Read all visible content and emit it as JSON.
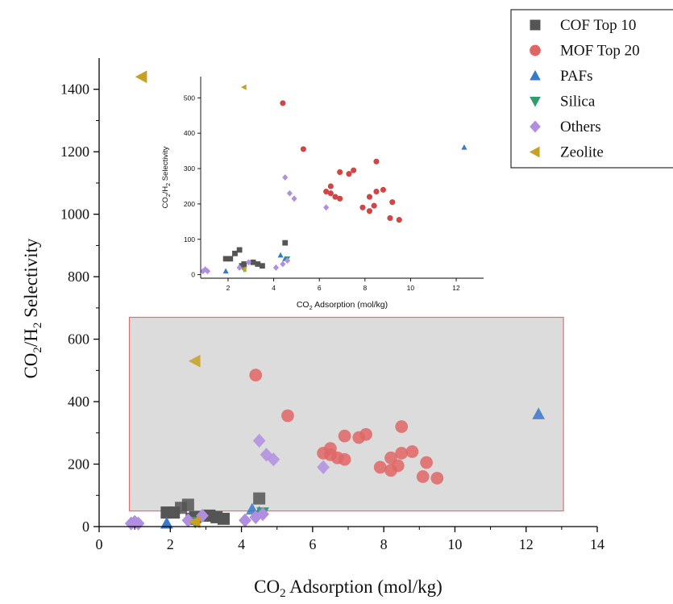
{
  "chart_data": [
    {
      "type": "scatter",
      "xlabel": "CO2 Adsorption (mol/kg)",
      "ylabel": "CO2/H2 Selectivity",
      "xlim": [
        0,
        14
      ],
      "ylim": [
        0,
        1500
      ],
      "xticks": [
        0,
        2,
        4,
        6,
        8,
        10,
        12,
        14
      ],
      "yticks": [
        0,
        200,
        400,
        600,
        800,
        1000,
        1200,
        1400
      ],
      "grid": false,
      "legend_position": "top-right",
      "highlight_region": {
        "x": [
          0.85,
          13.05
        ],
        "y": [
          50,
          670
        ],
        "fill": "#dcdcdc",
        "stroke": "#e07070"
      },
      "series": [
        {
          "name": "COF Top 10",
          "marker": "square",
          "color": "#555555",
          "x": [
            1.9,
            2.1,
            2.3,
            2.5,
            2.7,
            3.1,
            3.3,
            3.5,
            4.5,
            2.6
          ],
          "y": [
            45,
            45,
            60,
            70,
            30,
            35,
            30,
            25,
            90,
            25
          ]
        },
        {
          "name": "MOF Top 20",
          "marker": "circle",
          "color": "#e06666",
          "x": [
            4.4,
            5.3,
            6.3,
            6.5,
            6.7,
            6.9,
            6.9,
            7.3,
            7.5,
            7.9,
            8.2,
            8.2,
            8.4,
            8.5,
            8.5,
            8.8,
            9.1,
            9.2,
            9.5,
            6.5
          ],
          "y": [
            485,
            355,
            235,
            250,
            220,
            215,
            290,
            285,
            295,
            190,
            220,
            180,
            195,
            235,
            320,
            240,
            160,
            205,
            155,
            230
          ]
        },
        {
          "name": "PAFs",
          "marker": "triangle-up",
          "color": "#3a78c8",
          "x": [
            12.35,
            4.3,
            1.9,
            4.5
          ],
          "y": [
            360,
            55,
            10,
            45
          ]
        },
        {
          "name": "Silica",
          "marker": "triangle-down",
          "color": "#2e9e6b",
          "x": [
            4.6,
            2.7
          ],
          "y": [
            45,
            15
          ]
        },
        {
          "name": "Others",
          "marker": "diamond",
          "color": "#b08ee0",
          "x": [
            4.5,
            4.7,
            4.9,
            6.3,
            1.0,
            1.1,
            2.5,
            2.9,
            4.1,
            4.4,
            4.6,
            0.9
          ],
          "y": [
            275,
            230,
            215,
            190,
            15,
            10,
            20,
            35,
            20,
            30,
            40,
            10
          ]
        },
        {
          "name": "Zeolite",
          "marker": "triangle-left",
          "color": "#c9a020",
          "x": [
            1.2,
            2.7,
            2.7
          ],
          "y": [
            1440,
            530,
            15
          ]
        }
      ]
    },
    {
      "type": "scatter",
      "role": "inset",
      "xlabel": "CO2 Adsorption (mol/kg)",
      "ylabel": "CO2/H2 Selectivity",
      "xlim": [
        0.8,
        13.2
      ],
      "ylim": [
        -10,
        560
      ],
      "xticks": [
        2,
        4,
        6,
        8,
        10,
        12
      ],
      "yticks": [
        0,
        100,
        200,
        300,
        400,
        500
      ],
      "grid": false,
      "series": [
        {
          "name": "COF Top 10",
          "marker": "square",
          "color": "#555555",
          "x": [
            1.9,
            2.1,
            2.3,
            2.5,
            2.7,
            3.1,
            3.3,
            3.5,
            4.5,
            2.6
          ],
          "y": [
            45,
            45,
            60,
            70,
            30,
            35,
            30,
            25,
            90,
            25
          ]
        },
        {
          "name": "MOF Top 20",
          "marker": "circle",
          "color": "#d04545",
          "x": [
            4.4,
            5.3,
            6.3,
            6.5,
            6.7,
            6.9,
            6.9,
            7.3,
            7.5,
            7.9,
            8.2,
            8.2,
            8.4,
            8.5,
            8.5,
            8.8,
            9.1,
            9.2,
            9.5,
            6.5
          ],
          "y": [
            485,
            355,
            235,
            250,
            220,
            215,
            290,
            285,
            295,
            190,
            220,
            180,
            195,
            235,
            320,
            240,
            160,
            205,
            155,
            230
          ]
        },
        {
          "name": "PAFs",
          "marker": "triangle-up",
          "color": "#3a78c8",
          "x": [
            12.35,
            4.3,
            1.9,
            4.5
          ],
          "y": [
            360,
            55,
            10,
            45
          ]
        },
        {
          "name": "Silica",
          "marker": "triangle-down",
          "color": "#2e9e6b",
          "x": [
            4.6,
            2.7
          ],
          "y": [
            45,
            15
          ]
        },
        {
          "name": "Others",
          "marker": "diamond",
          "color": "#b08ee0",
          "x": [
            4.5,
            4.7,
            4.9,
            6.3,
            1.0,
            1.1,
            2.5,
            2.9,
            4.1,
            4.4,
            4.6,
            0.9
          ],
          "y": [
            275,
            230,
            215,
            190,
            15,
            10,
            20,
            35,
            20,
            30,
            40,
            10
          ]
        },
        {
          "name": "Zeolite",
          "marker": "triangle-left",
          "color": "#c9a020",
          "x": [
            2.7,
            2.7
          ],
          "y": [
            530,
            15
          ]
        }
      ]
    }
  ]
}
